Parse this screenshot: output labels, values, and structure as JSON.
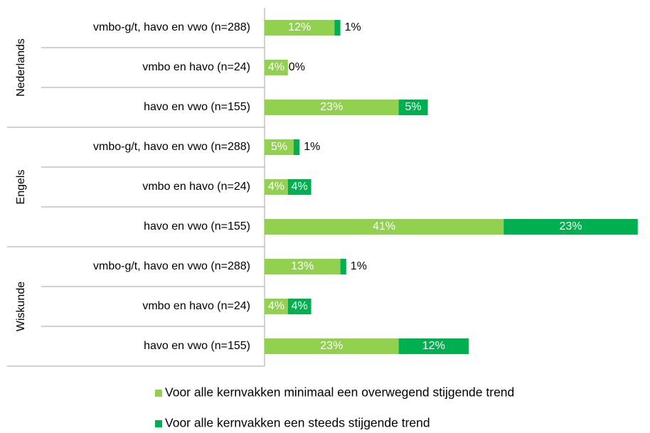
{
  "chart_data": {
    "type": "stacked-bar-horizontal",
    "groups": [
      "Nederlands",
      "Engels",
      "Wiskunde"
    ],
    "categories": [
      "vmbo-g/t, havo en vwo (n=288)",
      "vmbo en havo (n=24)",
      "havo en vwo (n=155)",
      "vmbo-g/t, havo en vwo (n=288)",
      "vmbo en havo (n=24)",
      "havo en vwo (n=155)",
      "vmbo-g/t, havo en vwo (n=288)",
      "vmbo en havo (n=24)",
      "havo en vwo (n=155)"
    ],
    "series": [
      {
        "name": "Voor alle kernvakken minimaal een overwegend stijgende trend",
        "color": "#92d050",
        "values": [
          12,
          4,
          23,
          5,
          4,
          41,
          13,
          4,
          23
        ],
        "value_labels": [
          "12%",
          "4%",
          "23%",
          "5%",
          "4%",
          "41%",
          "13%",
          "4%",
          "23%"
        ]
      },
      {
        "name": "Voor alle kernvakken een steeds stijgende trend",
        "color": "#00b050",
        "values": [
          1,
          0,
          5,
          1,
          4,
          23,
          1,
          4,
          12
        ],
        "value_labels": [
          "1%",
          "0%",
          "5%",
          "1%",
          "4%",
          "23%",
          "1%",
          "4%",
          "12%"
        ]
      }
    ],
    "legend": "bottom"
  }
}
